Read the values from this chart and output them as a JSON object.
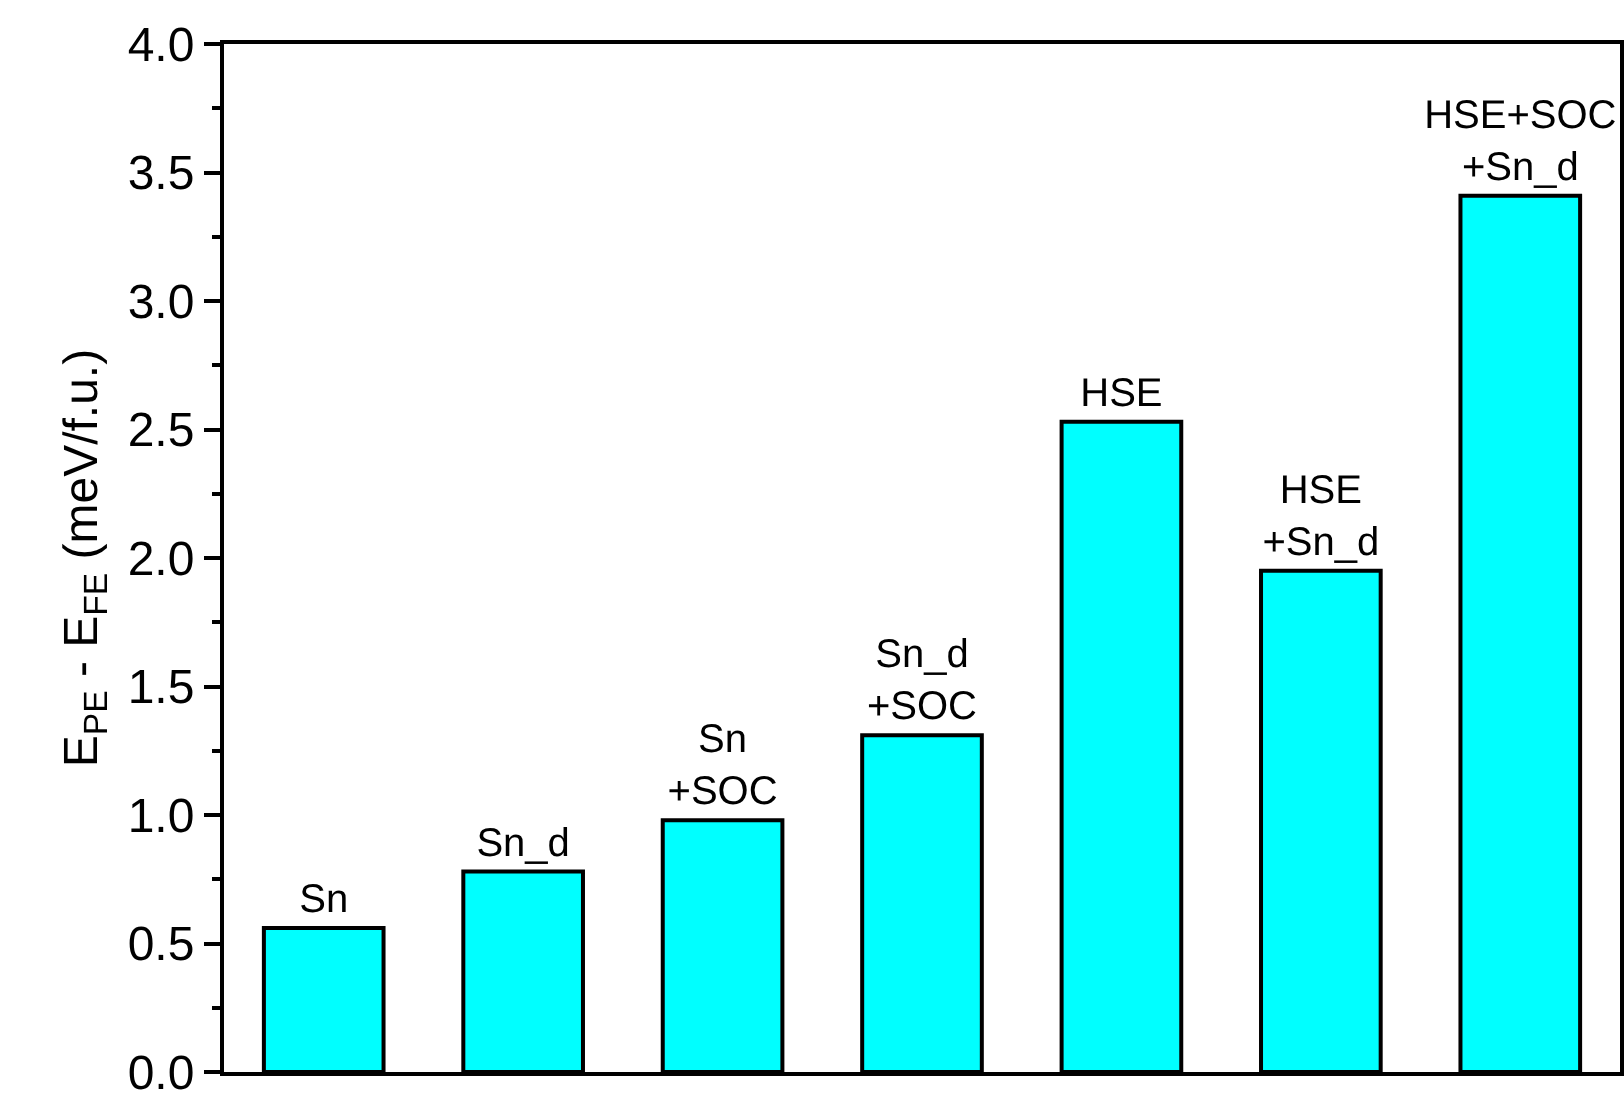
{
  "chart_data": {
    "type": "bar",
    "ylabel": "E$_{PE}$ - E$_{FE}$ (meV/f.u.)",
    "categories": [
      "Sn",
      "Sn_d",
      "Sn\n+SOC",
      "Sn_d\n+SOC",
      "HSE",
      "HSE\n+Sn_d",
      "HSE+SOC\n+Sn_d"
    ],
    "values": [
      0.56,
      0.78,
      0.98,
      1.31,
      2.53,
      1.95,
      3.41
    ],
    "color": "#00ffff",
    "ylim": [
      0,
      4.0
    ],
    "yticks": [
      {
        "value": 0,
        "label": "0.0"
      },
      0.5,
      {
        "value": 1,
        "label": "1.0"
      },
      1.5,
      {
        "value": 2,
        "label": "2.0"
      },
      2.5,
      {
        "value": 3,
        "label": "3.0"
      },
      3.5,
      {
        "value": 4,
        "label": "4.0"
      }
    ],
    "tick_labels": "y"
  }
}
